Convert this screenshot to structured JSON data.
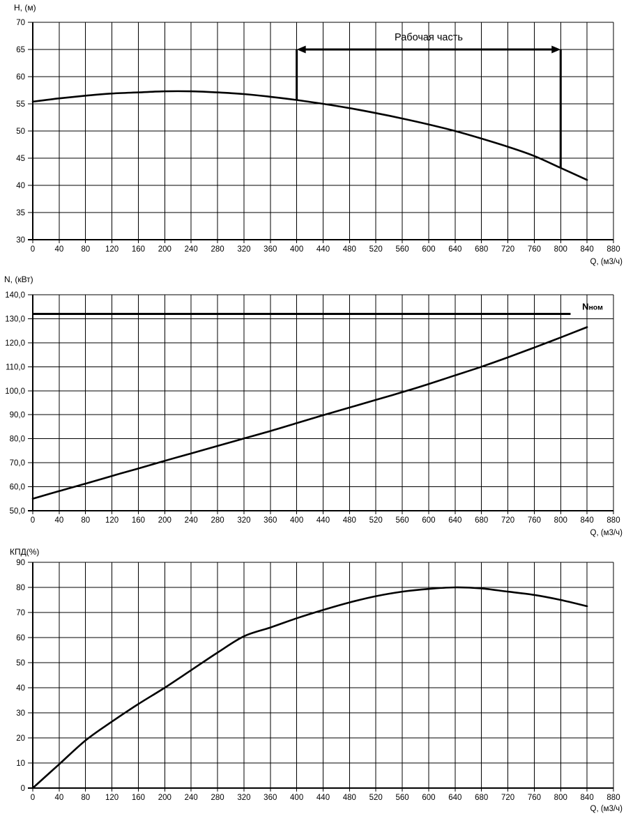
{
  "page": {
    "background": "#ffffff",
    "line_color": "#000000"
  },
  "chart_data": [
    {
      "id": "head-flow-chart",
      "type": "line",
      "title": "H, (м)",
      "xlabel": "Q, (м3/ч)",
      "xlim": [
        0,
        880
      ],
      "ylim": [
        30,
        70
      ],
      "grid": true,
      "xticks": [
        0,
        40,
        80,
        120,
        160,
        200,
        240,
        280,
        320,
        360,
        400,
        440,
        480,
        520,
        560,
        600,
        640,
        680,
        720,
        760,
        800,
        840,
        880
      ],
      "xtick_labels": [
        "0",
        "40",
        "80",
        "120",
        "160",
        "200",
        "240",
        "280",
        "320",
        "360",
        "400",
        "440",
        "480",
        "520",
        "560",
        "600",
        "640",
        "680",
        "720",
        "760",
        "800",
        "840",
        "880"
      ],
      "yticks": [
        70,
        65,
        60,
        55,
        50,
        45,
        40,
        35,
        30
      ],
      "ytick_labels": [
        "70",
        "65",
        "60",
        "55",
        "50",
        "45",
        "40",
        "35",
        "30"
      ],
      "x": [
        0,
        40,
        80,
        120,
        160,
        200,
        240,
        280,
        320,
        360,
        400,
        440,
        480,
        520,
        560,
        600,
        640,
        680,
        720,
        760,
        800,
        840
      ],
      "y": [
        55.4,
        56.0,
        56.5,
        56.9,
        57.1,
        57.3,
        57.3,
        57.1,
        56.8,
        56.3,
        55.7,
        55.0,
        54.2,
        53.3,
        52.3,
        51.2,
        50.0,
        48.6,
        47.1,
        45.4,
        43.2,
        41.0
      ],
      "working_range": {
        "label": "Рабочая часть",
        "x_start": 400,
        "x_end": 800,
        "arrow_y": 65,
        "label_x": 600
      }
    },
    {
      "id": "power-flow-chart",
      "type": "line",
      "title": "N, (кВт)",
      "xlabel": "Q, (м3/ч)",
      "xlim": [
        0,
        880
      ],
      "ylim": [
        50,
        140
      ],
      "grid": true,
      "xticks": [
        0,
        40,
        80,
        120,
        160,
        200,
        240,
        280,
        320,
        360,
        400,
        440,
        480,
        520,
        560,
        600,
        640,
        680,
        720,
        760,
        800,
        840,
        880
      ],
      "xtick_labels": [
        "0",
        "40",
        "80",
        "120",
        "160",
        "200",
        "240",
        "280",
        "320",
        "360",
        "400",
        "440",
        "480",
        "520",
        "560",
        "600",
        "640",
        "680",
        "720",
        "760",
        "800",
        "840",
        "880"
      ],
      "yticks": [
        140,
        130,
        120,
        110,
        100,
        90,
        80,
        70,
        60,
        50
      ],
      "ytick_labels": [
        "140,0",
        "130,0",
        "120,0",
        "110,0",
        "100,0",
        "90,0",
        "80,0",
        "70,0",
        "60,0",
        "50,0"
      ],
      "x": [
        0,
        40,
        80,
        120,
        160,
        200,
        240,
        280,
        320,
        360,
        400,
        440,
        480,
        520,
        560,
        600,
        640,
        680,
        720,
        760,
        800,
        840
      ],
      "y": [
        55.0,
        58.2,
        61.3,
        64.5,
        67.6,
        70.8,
        73.9,
        77.0,
        80.1,
        83.2,
        86.5,
        89.8,
        93.0,
        96.2,
        99.4,
        102.8,
        106.4,
        110.0,
        113.9,
        118.0,
        122.2,
        126.5
      ],
      "nominal": {
        "label": "Nном",
        "label_main": "N",
        "label_sub": "ном",
        "value": 132,
        "x_start": 0,
        "x_end": 815,
        "label_x": 864
      }
    },
    {
      "id": "efficiency-flow-chart",
      "type": "line",
      "title": "КПД(%)",
      "xlabel": "Q, (м3/ч)",
      "xlim": [
        0,
        880
      ],
      "ylim": [
        0,
        90
      ],
      "grid": true,
      "xticks": [
        0,
        40,
        80,
        120,
        160,
        200,
        240,
        280,
        320,
        360,
        400,
        440,
        480,
        520,
        560,
        600,
        640,
        680,
        720,
        760,
        800,
        840,
        880
      ],
      "xtick_labels": [
        "0",
        "40",
        "80",
        "120",
        "160",
        "200",
        "240",
        "280",
        "320",
        "360",
        "400",
        "440",
        "480",
        "520",
        "560",
        "600",
        "640",
        "680",
        "720",
        "760",
        "800",
        "840",
        "880"
      ],
      "yticks": [
        90,
        80,
        70,
        60,
        50,
        40,
        30,
        20,
        10,
        0
      ],
      "ytick_labels": [
        "90",
        "80",
        "70",
        "60",
        "50",
        "40",
        "30",
        "20",
        "10",
        "0"
      ],
      "x": [
        0,
        40,
        80,
        120,
        160,
        200,
        240,
        280,
        320,
        360,
        400,
        440,
        480,
        520,
        560,
        600,
        640,
        680,
        720,
        760,
        800,
        840
      ],
      "y": [
        0,
        9.5,
        19.0,
        26.5,
        33.5,
        40.0,
        47.0,
        54.0,
        60.5,
        64.0,
        67.7,
        71.0,
        74.0,
        76.5,
        78.3,
        79.4,
        80.0,
        79.6,
        78.3,
        77.0,
        75.0,
        72.5
      ]
    }
  ]
}
